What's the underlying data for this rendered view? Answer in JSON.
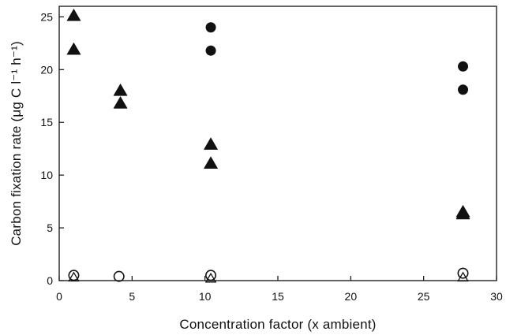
{
  "chart_data": {
    "type": "scatter",
    "title": "",
    "xlabel": "Concentration factor (x ambient)",
    "ylabel": "Carbon fixation rate (μg C l⁻¹ h⁻¹)",
    "xlim": [
      0,
      30
    ],
    "ylim": [
      0,
      26
    ],
    "x_ticks": [
      "0",
      "5",
      "10",
      "15",
      "20",
      "25",
      "30"
    ],
    "y_ticks": [
      "0",
      "5",
      "10",
      "15",
      "20",
      "25"
    ],
    "grid": false,
    "legend": "none",
    "series": [
      {
        "marker": "filled-triangle",
        "points": [
          {
            "x": 1.0,
            "y": 25.1
          },
          {
            "x": 1.0,
            "y": 21.9
          },
          {
            "x": 4.2,
            "y": 18.0
          },
          {
            "x": 4.2,
            "y": 16.8
          },
          {
            "x": 10.4,
            "y": 12.9
          },
          {
            "x": 10.4,
            "y": 11.1
          },
          {
            "x": 27.7,
            "y": 6.5
          },
          {
            "x": 27.7,
            "y": 6.3
          }
        ]
      },
      {
        "marker": "filled-circle",
        "points": [
          {
            "x": 10.4,
            "y": 24.0
          },
          {
            "x": 10.4,
            "y": 21.8
          },
          {
            "x": 27.7,
            "y": 20.3
          },
          {
            "x": 27.7,
            "y": 18.1
          }
        ]
      },
      {
        "marker": "open-circle",
        "points": [
          {
            "x": 1.0,
            "y": 0.5
          },
          {
            "x": 4.1,
            "y": 0.4
          },
          {
            "x": 10.4,
            "y": 0.5
          },
          {
            "x": 27.7,
            "y": 0.7
          }
        ]
      },
      {
        "marker": "open-triangle",
        "points": [
          {
            "x": 1.0,
            "y": 0.3
          },
          {
            "x": 10.4,
            "y": 0.2
          },
          {
            "x": 27.7,
            "y": 0.3
          }
        ]
      }
    ]
  }
}
